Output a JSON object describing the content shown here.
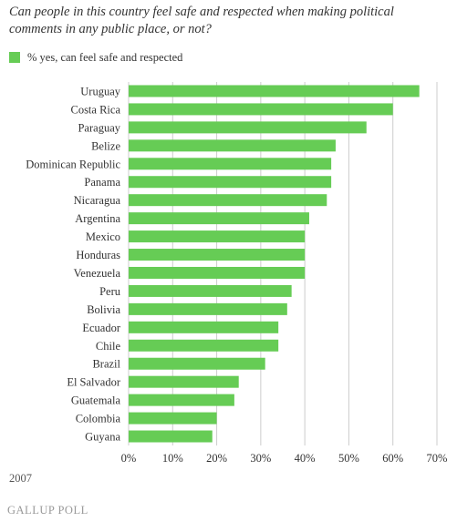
{
  "chart_data": {
    "type": "bar",
    "orientation": "horizontal",
    "title": "Can people in this country feel safe and respected when making political comments in any public place, or not?",
    "legend": "% yes, can feel safe and respected",
    "legend_position": "top-left",
    "categories": [
      "Uruguay",
      "Costa Rica",
      "Paraguay",
      "Belize",
      "Dominican Republic",
      "Panama",
      "Nicaragua",
      "Argentina",
      "Mexico",
      "Honduras",
      "Venezuela",
      "Peru",
      "Bolivia",
      "Ecuador",
      "Chile",
      "Brazil",
      "El Salvador",
      "Guatemala",
      "Colombia",
      "Guyana"
    ],
    "series": [
      {
        "name": "% yes, can feel safe and respected",
        "values": [
          66,
          60,
          54,
          47,
          46,
          46,
          45,
          41,
          40,
          40,
          40,
          37,
          36,
          34,
          34,
          31,
          25,
          24,
          20,
          19
        ]
      }
    ],
    "x_ticks": [
      "0%",
      "10%",
      "20%",
      "30%",
      "40%",
      "50%",
      "60%",
      "70%"
    ],
    "xlim": [
      0,
      70
    ],
    "grid": true,
    "bar_color": "#66cc55",
    "grid_color": "#cccccc"
  },
  "footer": {
    "year": "2007",
    "brand": "GALLUP POLL"
  }
}
